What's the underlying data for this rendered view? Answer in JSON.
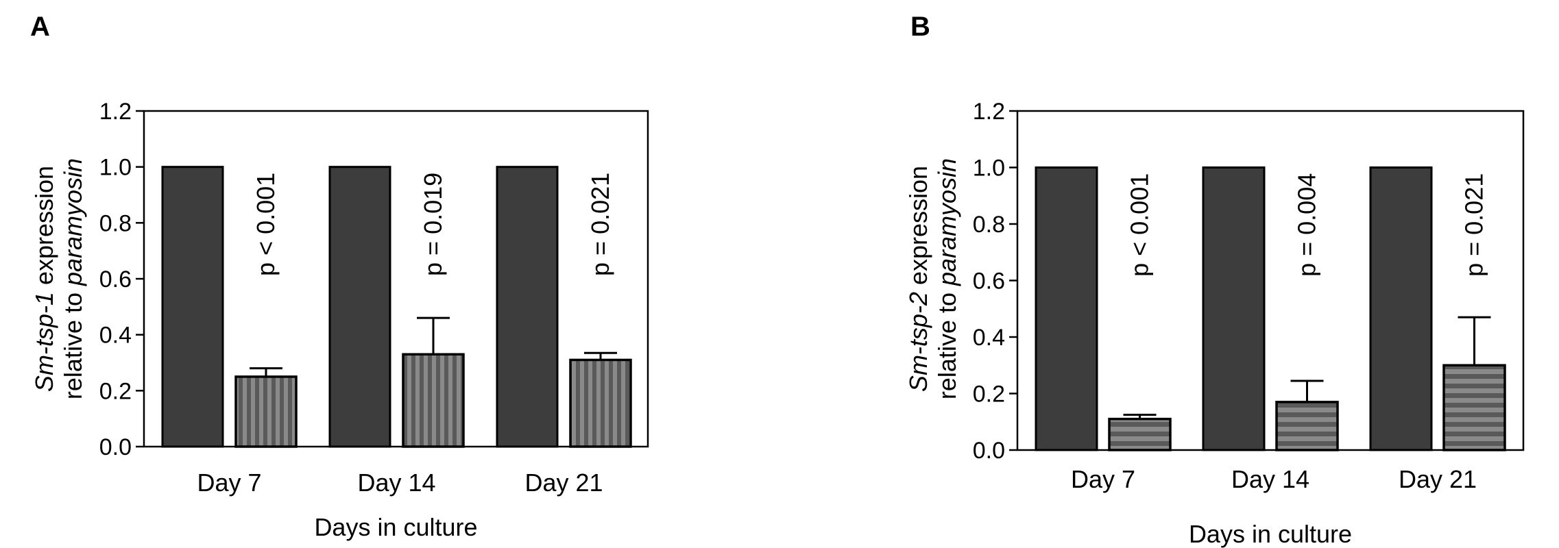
{
  "chart_data": [
    {
      "panel_label": "A",
      "type": "bar",
      "categories": [
        "Day 7",
        "Day 14",
        "Day 21"
      ],
      "series": [
        {
          "values": [
            1.0,
            1.0,
            1.0
          ],
          "color": "#3d3d3d",
          "pattern": "solid"
        },
        {
          "values": [
            0.25,
            0.33,
            0.31
          ],
          "errors": [
            0.03,
            0.13,
            0.025
          ],
          "color": "#7a7a7a",
          "pattern": "vertical-stripes"
        }
      ],
      "annotations": [
        "p < 0.001",
        "p = 0.019",
        "p = 0.021"
      ],
      "ylabel_lines": [
        [
          {
            "text": "Sm-tsp-1",
            "italic": true
          },
          {
            "text": " expression",
            "italic": false
          }
        ],
        [
          {
            "text": "relative to ",
            "italic": false
          },
          {
            "text": "paramyosin",
            "italic": true
          }
        ]
      ],
      "xlabel": "Days in culture",
      "ylim": [
        0,
        1.2
      ],
      "yticks": [
        "0.0",
        "0.2",
        "0.4",
        "0.6",
        "0.8",
        "1.0",
        "1.2"
      ],
      "grid": false
    },
    {
      "panel_label": "B",
      "type": "bar",
      "categories": [
        "Day 7",
        "Day 14",
        "Day 21"
      ],
      "series": [
        {
          "values": [
            1.0,
            1.0,
            1.0
          ],
          "color": "#3d3d3d",
          "pattern": "solid"
        },
        {
          "values": [
            0.11,
            0.17,
            0.3
          ],
          "errors": [
            0.015,
            0.075,
            0.17
          ],
          "color": "#7a7a7a",
          "pattern": "horizontal-stripes"
        }
      ],
      "annotations": [
        "p < 0.001",
        "p = 0.004",
        "p = 0.021"
      ],
      "ylabel_lines": [
        [
          {
            "text": "Sm-tsp-2",
            "italic": true
          },
          {
            "text": " expression",
            "italic": false
          }
        ],
        [
          {
            "text": "relative to ",
            "italic": false
          },
          {
            "text": "paramyosin",
            "italic": true
          }
        ]
      ],
      "xlabel": "Days in culture",
      "ylim": [
        0,
        1.2
      ],
      "yticks": [
        "0.0",
        "0.2",
        "0.4",
        "0.6",
        "0.8",
        "1.0",
        "1.2"
      ],
      "grid": false
    }
  ]
}
